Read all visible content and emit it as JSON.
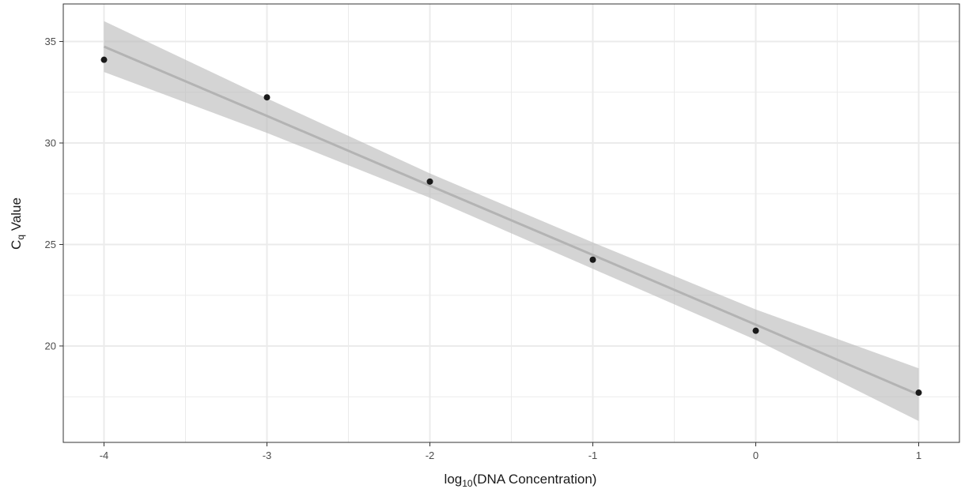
{
  "chart_data": {
    "type": "scatter",
    "title": "",
    "xlabel": {
      "pre": "log",
      "sub": "10",
      "post": "(DNA Concentration)"
    },
    "ylabel": {
      "pre": "C",
      "sub": "q",
      "post": " Value"
    },
    "xlim": [
      -4.25,
      1.25
    ],
    "ylim": [
      15.25,
      36.85
    ],
    "x_ticks": [
      -4,
      -3,
      -2,
      -1,
      0,
      1
    ],
    "x_tick_labels": [
      "-4",
      "-3",
      "-2",
      "-1",
      "0",
      "1"
    ],
    "y_ticks": [
      20,
      25,
      30,
      35
    ],
    "y_tick_labels": [
      "20",
      "25",
      "30",
      "35"
    ],
    "grid": true,
    "points": [
      {
        "x": -4,
        "y": 34.1
      },
      {
        "x": -3,
        "y": 32.25
      },
      {
        "x": -2,
        "y": 28.1
      },
      {
        "x": -1,
        "y": 24.25
      },
      {
        "x": 0,
        "y": 20.75
      },
      {
        "x": 1,
        "y": 17.7
      }
    ],
    "fit": {
      "x": [
        -4,
        -3,
        -2,
        -1,
        0,
        1
      ],
      "y": [
        34.75,
        31.33,
        27.9,
        24.48,
        21.05,
        17.6
      ],
      "lower": [
        33.5,
        30.5,
        27.3,
        23.8,
        20.3,
        16.3
      ],
      "upper": [
        36.0,
        32.2,
        28.5,
        25.1,
        21.8,
        18.9
      ]
    },
    "colors": {
      "point": "#1a1a1a",
      "fit_line": "#b3b3b3",
      "band": "#bdbdbd",
      "grid": "#ebebeb",
      "panel_border": "#333333"
    }
  }
}
